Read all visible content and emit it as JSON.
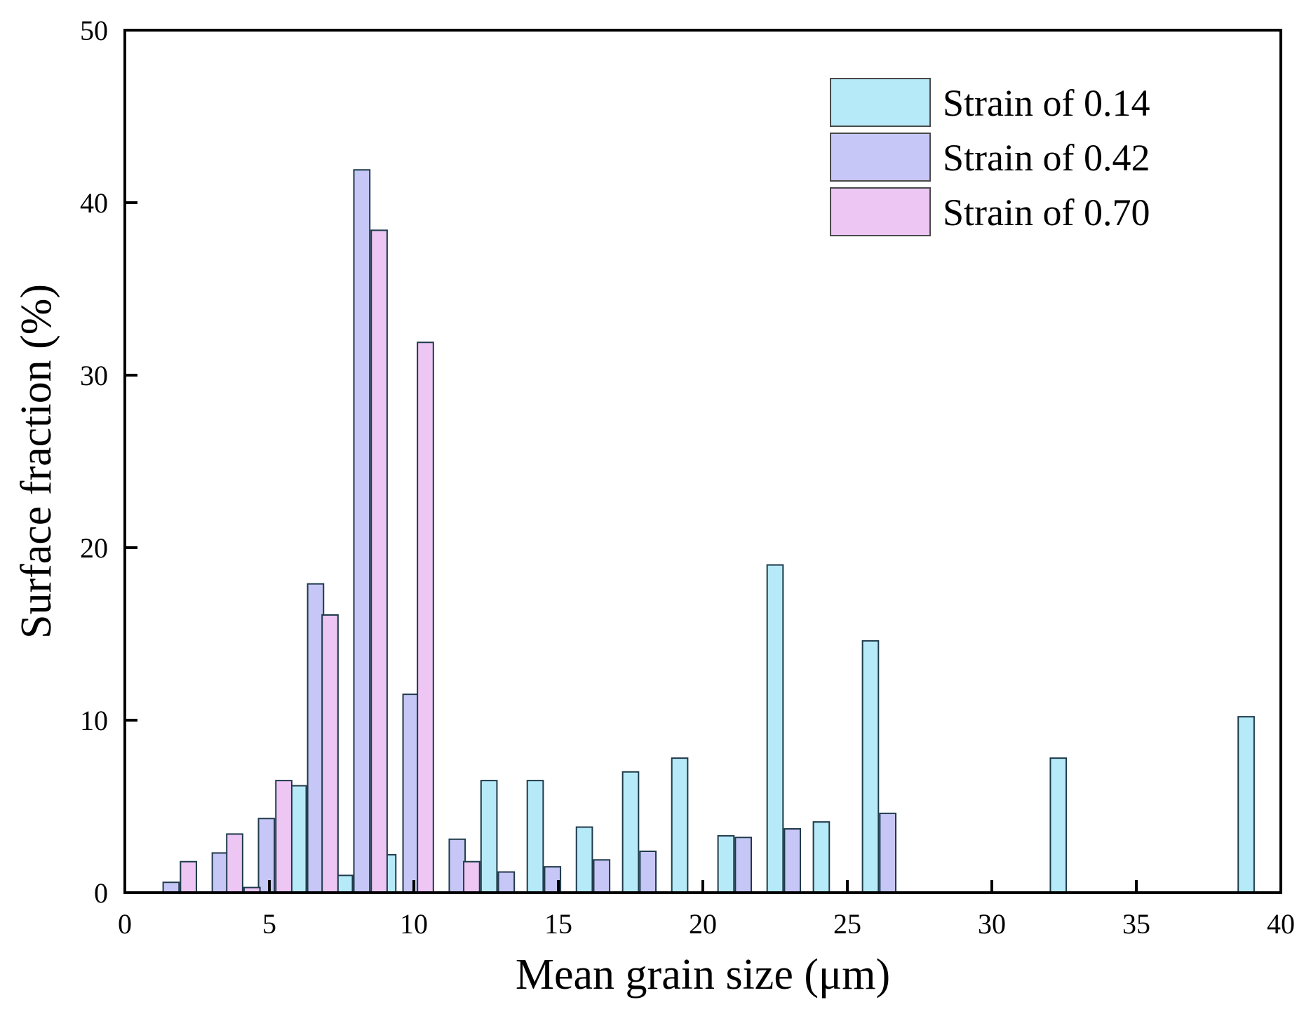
{
  "chart_data": {
    "type": "bar",
    "title": "",
    "xlabel": "Mean grain size (μm)",
    "ylabel": "Surface fraction (%)",
    "xlim": [
      0,
      40
    ],
    "ylim": [
      0,
      50
    ],
    "xticks": [
      0,
      5,
      10,
      15,
      20,
      25,
      30,
      35,
      40
    ],
    "yticks": [
      0,
      10,
      20,
      30,
      40,
      50
    ],
    "grid": false,
    "legend_position": "top-right",
    "bar_width": 0.55,
    "series": [
      {
        "name": "Strain of 0.14",
        "color": "#b6eaf8",
        "points": [
          {
            "x": 6.0,
            "y": 6.2
          },
          {
            "x": 7.6,
            "y": 1.0
          },
          {
            "x": 9.1,
            "y": 2.2
          },
          {
            "x": 12.6,
            "y": 6.5
          },
          {
            "x": 14.2,
            "y": 6.5
          },
          {
            "x": 15.9,
            "y": 3.8
          },
          {
            "x": 17.5,
            "y": 7.0
          },
          {
            "x": 19.2,
            "y": 7.8
          },
          {
            "x": 20.8,
            "y": 3.3
          },
          {
            "x": 22.5,
            "y": 19.0
          },
          {
            "x": 24.1,
            "y": 4.1
          },
          {
            "x": 25.8,
            "y": 14.6
          },
          {
            "x": 32.3,
            "y": 7.8
          },
          {
            "x": 38.8,
            "y": 10.2
          }
        ]
      },
      {
        "name": "Strain of 0.42",
        "color": "#c6c7f6",
        "points": [
          {
            "x": 1.6,
            "y": 0.6
          },
          {
            "x": 3.3,
            "y": 2.3
          },
          {
            "x": 4.9,
            "y": 4.3
          },
          {
            "x": 6.6,
            "y": 17.9
          },
          {
            "x": 8.2,
            "y": 41.9
          },
          {
            "x": 9.9,
            "y": 11.5
          },
          {
            "x": 11.5,
            "y": 3.1
          },
          {
            "x": 13.2,
            "y": 1.2
          },
          {
            "x": 14.8,
            "y": 1.5
          },
          {
            "x": 16.5,
            "y": 1.9
          },
          {
            "x": 18.1,
            "y": 2.4
          },
          {
            "x": 21.4,
            "y": 3.2
          },
          {
            "x": 23.1,
            "y": 3.7
          },
          {
            "x": 26.4,
            "y": 4.6
          }
        ]
      },
      {
        "name": "Strain of 0.70",
        "color": "#edc6f4",
        "points": [
          {
            "x": 2.2,
            "y": 1.8
          },
          {
            "x": 3.8,
            "y": 3.4
          },
          {
            "x": 4.4,
            "y": 0.3
          },
          {
            "x": 5.5,
            "y": 6.5
          },
          {
            "x": 7.1,
            "y": 16.1
          },
          {
            "x": 8.8,
            "y": 38.4
          },
          {
            "x": 10.4,
            "y": 31.9
          },
          {
            "x": 12.0,
            "y": 1.8
          }
        ]
      }
    ]
  }
}
